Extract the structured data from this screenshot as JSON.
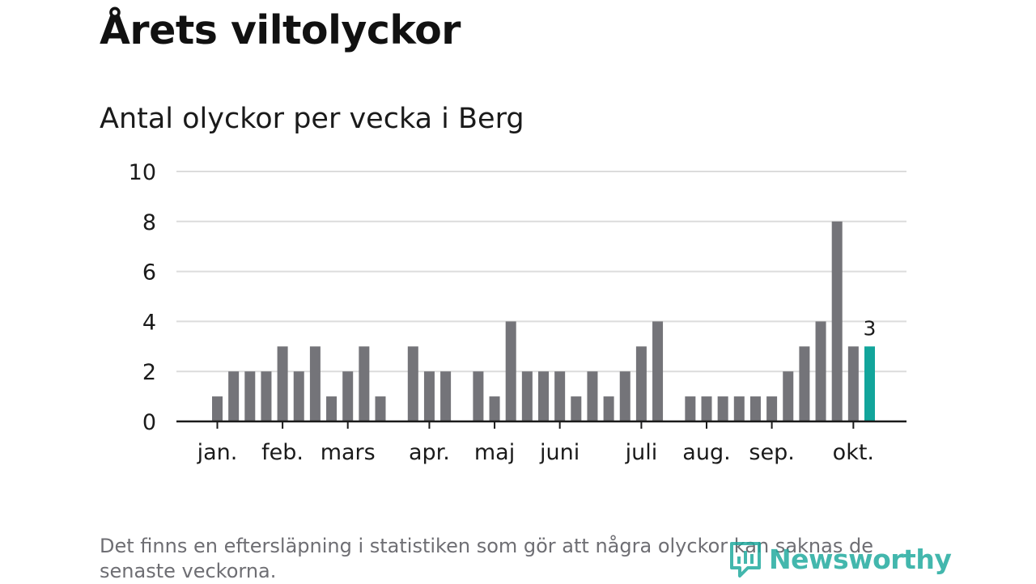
{
  "header": {
    "title": "Årets viltolyckor",
    "subtitle": "Antal olyckor per vecka i Berg"
  },
  "chart_data": {
    "type": "bar",
    "title": "Årets viltolyckor",
    "subtitle": "Antal olyckor per vecka i Berg",
    "xlabel": "",
    "ylabel": "",
    "ylim": [
      0,
      10
    ],
    "yticks": [
      0,
      2,
      4,
      6,
      8,
      10
    ],
    "grid": true,
    "month_ticks": [
      {
        "label": "jan.",
        "week": 1
      },
      {
        "label": "feb.",
        "week": 5
      },
      {
        "label": "mars",
        "week": 9
      },
      {
        "label": "apr.",
        "week": 14
      },
      {
        "label": "maj",
        "week": 18
      },
      {
        "label": "juni",
        "week": 22
      },
      {
        "label": "juli",
        "week": 27
      },
      {
        "label": "aug.",
        "week": 31
      },
      {
        "label": "sep.",
        "week": 35
      },
      {
        "label": "okt.",
        "week": 40
      }
    ],
    "weeks": [
      1,
      2,
      3,
      4,
      5,
      6,
      7,
      8,
      9,
      10,
      11,
      12,
      13,
      14,
      15,
      16,
      17,
      18,
      19,
      20,
      21,
      22,
      23,
      24,
      25,
      26,
      27,
      28,
      29,
      30,
      31,
      32,
      33,
      34,
      35,
      36,
      37,
      38,
      39,
      40,
      41
    ],
    "values": [
      1,
      2,
      2,
      2,
      3,
      2,
      3,
      1,
      2,
      3,
      1,
      0,
      3,
      2,
      2,
      0,
      2,
      1,
      4,
      2,
      2,
      2,
      1,
      2,
      1,
      2,
      3,
      4,
      0,
      1,
      1,
      1,
      1,
      1,
      1,
      2,
      3,
      4,
      8,
      3,
      3
    ],
    "highlight_index": 40,
    "highlight_label": "3",
    "bar_color": "#747479",
    "highlight_color": "#12a59b",
    "grid_color": "#dcdcdc",
    "axis_color": "#1a1a1a"
  },
  "footer": {
    "note": "Det finns en eftersläpning i statistiken som gör att några olyckor kan saknas de senaste veckorna.",
    "brand": "Newsworthy",
    "brand_icon": "newsworthy-logo-icon"
  }
}
